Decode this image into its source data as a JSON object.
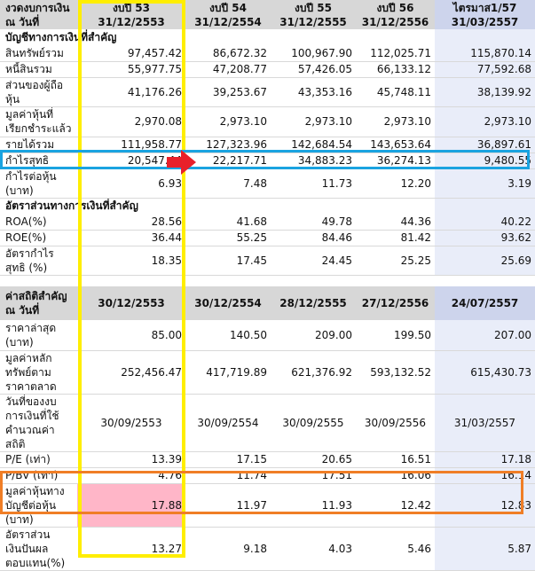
{
  "table1": {
    "header": {
      "label": "งวดงบการเงิน\nณ วันที่",
      "cols": [
        {
          "name": "งบปี 53",
          "date": "31/12/2553"
        },
        {
          "name": "งบปี 54",
          "date": "31/12/2554"
        },
        {
          "name": "งบปี 55",
          "date": "31/12/2555"
        },
        {
          "name": "งบปี 56",
          "date": "31/12/2556"
        },
        {
          "name": "ไตรมาส1/57",
          "date": "31/03/2557"
        }
      ]
    },
    "sections": [
      {
        "title": "บัญชีทางการเงินที่สำคัญ",
        "rows": [
          {
            "label": "สินทรัพย์รวม",
            "values": [
              "97,457.42",
              "86,672.32",
              "100,967.90",
              "112,025.71",
              "115,870.14"
            ]
          },
          {
            "label": "หนี้สินรวม",
            "values": [
              "55,977.75",
              "47,208.77",
              "57,426.05",
              "66,133.12",
              "77,592.68"
            ]
          },
          {
            "label": "ส่วนของผู้ถือหุ้น",
            "values": [
              "41,176.26",
              "39,253.67",
              "43,353.16",
              "45,748.11",
              "38,139.92"
            ]
          },
          {
            "label": "มูลค่าหุ้นที่เรียกชำระแล้ว",
            "values": [
              "2,970.08",
              "2,973.10",
              "2,973.10",
              "2,973.10",
              "2,973.10"
            ]
          },
          {
            "label": "รายได้รวม",
            "values": [
              "111,958.77",
              "127,323.96",
              "142,684.54",
              "143,653.64",
              "36,897.61"
            ]
          },
          {
            "label": "กำไรสุทธิ",
            "values": [
              "20,547.44",
              "22,217.71",
              "34,883.23",
              "36,274.13",
              "9,480.55"
            ]
          },
          {
            "label": "กำไรต่อหุ้น (บาท)",
            "values": [
              "6.93",
              "7.48",
              "11.73",
              "12.20",
              "3.19"
            ]
          }
        ]
      },
      {
        "title": "อัตราส่วนทางการเงินที่สำคัญ",
        "rows": [
          {
            "label": "ROA(%)",
            "values": [
              "28.56",
              "41.68",
              "49.78",
              "44.36",
              "40.22"
            ]
          },
          {
            "label": "ROE(%)",
            "values": [
              "36.44",
              "55.25",
              "84.46",
              "81.42",
              "93.62"
            ]
          },
          {
            "label": "อัตรากำไรสุทธิ (%)",
            "values": [
              "18.35",
              "17.45",
              "24.45",
              "25.25",
              "25.69"
            ]
          }
        ]
      }
    ]
  },
  "table2": {
    "header": {
      "label": "ค่าสถิติสำคัญ\nณ วันที่",
      "dates": [
        "30/12/2553",
        "30/12/2554",
        "28/12/2555",
        "27/12/2556",
        "24/07/2557"
      ]
    },
    "rows": [
      {
        "label": "ราคาล่าสุด (บาท)",
        "values": [
          "85.00",
          "140.50",
          "209.00",
          "199.50",
          "207.00"
        ]
      },
      {
        "label": "มูลค่าหลักทรัพย์ตามราคาตลาด",
        "values": [
          "252,456.47",
          "417,719.89",
          "621,376.92",
          "593,132.52",
          "615,430.73"
        ]
      },
      {
        "label": "วันที่ของงบการเงินที่ใช้คำนวณค่าสถิติ",
        "values": [
          "30/09/2553",
          "30/09/2554",
          "30/09/2555",
          "30/09/2556",
          "31/03/2557"
        ]
      },
      {
        "label": "P/E (เท่า)",
        "values": [
          "13.39",
          "17.15",
          "20.65",
          "16.51",
          "17.18"
        ]
      },
      {
        "label": "P/BV (เท่า)",
        "values": [
          "4.76",
          "11.74",
          "17.51",
          "16.06",
          "16.14"
        ]
      },
      {
        "label": "มูลค่าหุ้นทางบัญชีต่อหุ้น (บาท)",
        "values": [
          "17.88",
          "11.97",
          "11.93",
          "12.42",
          "12.83"
        ]
      },
      {
        "label": "อัตราส่วนเงินปันผลตอบแทน(%)",
        "values": [
          "13.27",
          "9.18",
          "4.03",
          "5.46",
          "5.87"
        ]
      }
    ]
  },
  "colors": {
    "header_bg": "#d7d7d7",
    "latest_col_bg": "#e9edf9",
    "yellow_box": "#ffee00",
    "blue_box": "#1aa3e0",
    "orange_box": "#f07e26",
    "pink_fill": "#ffb6c8",
    "arrow": "#e8202a"
  },
  "annotations": {
    "arrow_icon": "right-arrow-icon"
  }
}
